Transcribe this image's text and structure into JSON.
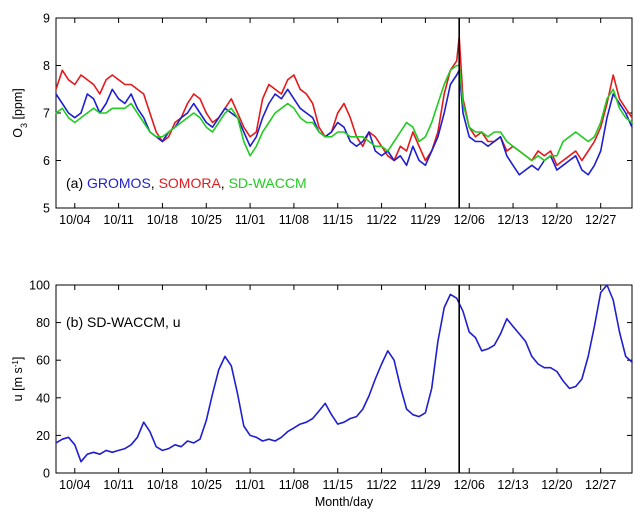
{
  "chart_data": [
    {
      "type": "line",
      "panel_label": "(a)",
      "xlabel": "",
      "ylabel_main": "O",
      "ylabel_sub": "3",
      "ylabel_unit": " [ppm]",
      "ylim": [
        5,
        9
      ],
      "yticks": [
        "5",
        "6",
        "7",
        "8",
        "9"
      ],
      "xlim": [
        1,
        93
      ],
      "xticks": [
        {
          "day": 4,
          "label": "10/04"
        },
        {
          "day": 11,
          "label": "10/11"
        },
        {
          "day": 18,
          "label": "10/18"
        },
        {
          "day": 25,
          "label": "10/25"
        },
        {
          "day": 32,
          "label": "11/01"
        },
        {
          "day": 39,
          "label": "11/08"
        },
        {
          "day": 46,
          "label": "11/15"
        },
        {
          "day": 53,
          "label": "11/22"
        },
        {
          "day": 60,
          "label": "11/29"
        },
        {
          "day": 67,
          "label": "12/06"
        },
        {
          "day": 74,
          "label": "12/13"
        },
        {
          "day": 81,
          "label": "12/20"
        },
        {
          "day": 88,
          "label": "12/27"
        }
      ],
      "event_day": 65.4,
      "annotation": [
        {
          "text": "(a) ",
          "color": "#000000"
        },
        {
          "text": "GROMOS",
          "color": "#1f1fd0"
        },
        {
          "text": ", ",
          "color": "#000000"
        },
        {
          "text": "SOMORA",
          "color": "#e31a1c"
        },
        {
          "text": ", ",
          "color": "#000000"
        },
        {
          "text": "SD-WACCM",
          "color": "#22cc22"
        }
      ],
      "series": [
        {
          "name": "SOMORA",
          "color": "#e31a1c",
          "x": [
            1,
            2,
            3,
            4,
            5,
            6,
            7,
            8,
            9,
            10,
            11,
            12,
            13,
            14,
            15,
            16,
            17,
            18,
            19,
            20,
            21,
            22,
            23,
            24,
            25,
            26,
            27,
            28,
            29,
            30,
            31,
            32,
            33,
            34,
            35,
            36,
            37,
            38,
            39,
            40,
            41,
            42,
            43,
            44,
            45,
            46,
            47,
            48,
            49,
            50,
            51,
            52,
            53,
            54,
            55,
            56,
            57,
            58,
            59,
            60,
            61,
            62,
            63,
            64,
            65,
            65.4,
            66,
            67,
            68,
            69,
            70,
            71,
            72,
            73,
            74,
            75,
            76,
            77,
            78,
            79,
            80,
            81,
            82,
            83,
            84,
            85,
            86,
            87,
            88,
            89,
            90,
            91,
            92,
            93
          ],
          "y": [
            7.5,
            7.9,
            7.7,
            7.6,
            7.8,
            7.7,
            7.6,
            7.4,
            7.7,
            7.8,
            7.7,
            7.6,
            7.6,
            7.5,
            7.4,
            7.0,
            6.6,
            6.4,
            6.5,
            6.8,
            6.9,
            7.2,
            7.4,
            7.3,
            7.0,
            6.8,
            6.9,
            7.1,
            7.3,
            7.0,
            6.7,
            6.5,
            6.6,
            7.3,
            7.6,
            7.5,
            7.4,
            7.7,
            7.8,
            7.5,
            7.4,
            7.2,
            6.7,
            6.5,
            6.6,
            7.0,
            7.2,
            6.9,
            6.5,
            6.3,
            6.6,
            6.5,
            6.3,
            6.1,
            6.0,
            6.3,
            6.2,
            6.6,
            6.3,
            6.0,
            6.2,
            6.6,
            7.4,
            7.9,
            8.1,
            8.6,
            7.3,
            6.7,
            6.5,
            6.6,
            6.4,
            6.4,
            6.5,
            6.2,
            6.3,
            6.2,
            6.1,
            6.0,
            6.2,
            6.1,
            6.2,
            5.9,
            6.0,
            6.1,
            6.2,
            6.0,
            6.2,
            6.4,
            6.7,
            7.2,
            7.8,
            7.3,
            7.1,
            6.9
          ]
        },
        {
          "name": "GROMOS",
          "color": "#1f1fd0",
          "x": [
            1,
            2,
            3,
            4,
            5,
            6,
            7,
            8,
            9,
            10,
            11,
            12,
            13,
            14,
            15,
            16,
            17,
            18,
            19,
            20,
            21,
            22,
            23,
            24,
            25,
            26,
            27,
            28,
            29,
            30,
            31,
            32,
            33,
            34,
            35,
            36,
            37,
            38,
            39,
            40,
            41,
            42,
            43,
            44,
            45,
            46,
            47,
            48,
            49,
            50,
            51,
            52,
            53,
            54,
            55,
            56,
            57,
            58,
            59,
            60,
            61,
            62,
            63,
            64,
            65,
            65.4,
            66,
            67,
            68,
            69,
            70,
            71,
            72,
            73,
            74,
            75,
            76,
            77,
            78,
            79,
            80,
            81,
            82,
            83,
            84,
            85,
            86,
            87,
            88,
            89,
            90,
            91,
            92,
            93
          ],
          "y": [
            7.4,
            7.2,
            7.0,
            6.9,
            7.0,
            7.4,
            7.3,
            7.0,
            7.2,
            7.5,
            7.3,
            7.2,
            7.4,
            7.1,
            6.9,
            6.6,
            6.5,
            6.4,
            6.6,
            6.7,
            6.9,
            7.0,
            7.2,
            7.0,
            6.8,
            6.7,
            6.9,
            7.1,
            7.0,
            6.9,
            6.6,
            6.3,
            6.5,
            6.9,
            7.2,
            7.4,
            7.3,
            7.5,
            7.3,
            7.1,
            7.0,
            6.9,
            6.6,
            6.5,
            6.6,
            6.8,
            6.7,
            6.4,
            6.3,
            6.4,
            6.6,
            6.2,
            6.1,
            6.2,
            6.0,
            6.1,
            5.9,
            6.3,
            6.0,
            5.9,
            6.2,
            6.5,
            7.0,
            7.6,
            7.8,
            7.9,
            7.0,
            6.5,
            6.4,
            6.4,
            6.3,
            6.4,
            6.5,
            6.1,
            5.9,
            5.7,
            5.8,
            5.9,
            5.8,
            6.0,
            6.1,
            5.8,
            5.9,
            6.0,
            6.1,
            5.8,
            5.7,
            5.9,
            6.2,
            6.9,
            7.4,
            7.2,
            7.0,
            6.7
          ]
        },
        {
          "name": "SD-WACCM",
          "color": "#22cc22",
          "x": [
            1,
            2,
            3,
            4,
            5,
            6,
            7,
            8,
            9,
            10,
            11,
            12,
            13,
            14,
            15,
            16,
            17,
            18,
            19,
            20,
            21,
            22,
            23,
            24,
            25,
            26,
            27,
            28,
            29,
            30,
            31,
            32,
            33,
            34,
            35,
            36,
            37,
            38,
            39,
            40,
            41,
            42,
            43,
            44,
            45,
            46,
            47,
            48,
            49,
            50,
            51,
            52,
            53,
            54,
            55,
            56,
            57,
            58,
            59,
            60,
            61,
            62,
            63,
            64,
            65,
            65.4,
            66,
            67,
            68,
            69,
            70,
            71,
            72,
            73,
            74,
            75,
            76,
            77,
            78,
            79,
            80,
            81,
            82,
            83,
            84,
            85,
            86,
            87,
            88,
            89,
            90,
            91,
            92,
            93
          ],
          "y": [
            7.0,
            7.1,
            6.9,
            6.8,
            6.9,
            7.0,
            7.1,
            7.0,
            7.0,
            7.1,
            7.1,
            7.1,
            7.2,
            7.0,
            6.8,
            6.6,
            6.5,
            6.5,
            6.6,
            6.7,
            6.8,
            6.9,
            7.0,
            6.9,
            6.7,
            6.6,
            6.8,
            7.0,
            7.1,
            6.9,
            6.4,
            6.1,
            6.3,
            6.6,
            6.8,
            7.0,
            7.1,
            7.2,
            7.1,
            6.9,
            6.8,
            6.8,
            6.6,
            6.5,
            6.5,
            6.6,
            6.6,
            6.5,
            6.5,
            6.5,
            6.4,
            6.3,
            6.3,
            6.2,
            6.4,
            6.6,
            6.8,
            6.7,
            6.4,
            6.5,
            6.8,
            7.2,
            7.6,
            7.9,
            8.0,
            8.0,
            7.2,
            6.7,
            6.6,
            6.6,
            6.5,
            6.6,
            6.6,
            6.4,
            6.3,
            6.2,
            6.1,
            6.0,
            6.1,
            6.0,
            6.1,
            6.1,
            6.4,
            6.5,
            6.6,
            6.5,
            6.4,
            6.5,
            6.8,
            7.3,
            7.5,
            7.1,
            6.9,
            6.8
          ]
        }
      ]
    },
    {
      "type": "line",
      "panel_label": "(b) SD-WACCM, u",
      "xlabel": "Month/day",
      "ylabel_main": "u [m s",
      "ylabel_sup": "-1",
      "ylabel_tail": "]",
      "ylim": [
        0,
        100
      ],
      "yticks": [
        "0",
        "20",
        "40",
        "60",
        "80",
        "100"
      ],
      "xlim": [
        1,
        93
      ],
      "xticks": [
        {
          "day": 4,
          "label": "10/04"
        },
        {
          "day": 11,
          "label": "10/11"
        },
        {
          "day": 18,
          "label": "10/18"
        },
        {
          "day": 25,
          "label": "10/25"
        },
        {
          "day": 32,
          "label": "11/01"
        },
        {
          "day": 39,
          "label": "11/08"
        },
        {
          "day": 46,
          "label": "11/15"
        },
        {
          "day": 53,
          "label": "11/22"
        },
        {
          "day": 60,
          "label": "11/29"
        },
        {
          "day": 67,
          "label": "12/06"
        },
        {
          "day": 74,
          "label": "12/13"
        },
        {
          "day": 81,
          "label": "12/20"
        },
        {
          "day": 88,
          "label": "12/27"
        }
      ],
      "event_day": 65.4,
      "series": [
        {
          "name": "SD-WACCM, u",
          "color": "#1f1fd0",
          "x": [
            1,
            2,
            3,
            4,
            5,
            6,
            7,
            8,
            9,
            10,
            11,
            12,
            13,
            14,
            15,
            16,
            17,
            18,
            19,
            20,
            21,
            22,
            23,
            24,
            25,
            26,
            27,
            28,
            29,
            30,
            31,
            32,
            33,
            34,
            35,
            36,
            37,
            38,
            39,
            40,
            41,
            42,
            43,
            44,
            45,
            46,
            47,
            48,
            49,
            50,
            51,
            52,
            53,
            54,
            55,
            56,
            57,
            58,
            59,
            60,
            61,
            62,
            63,
            64,
            65,
            66,
            67,
            68,
            69,
            70,
            71,
            72,
            73,
            74,
            75,
            76,
            77,
            78,
            79,
            80,
            81,
            82,
            83,
            84,
            85,
            86,
            87,
            88,
            89,
            90,
            91,
            92,
            93
          ],
          "y": [
            16,
            18,
            19,
            15,
            6,
            10,
            11,
            10,
            12,
            11,
            12,
            13,
            15,
            19,
            27,
            22,
            14,
            12,
            13,
            15,
            14,
            17,
            16,
            18,
            28,
            42,
            55,
            62,
            57,
            42,
            25,
            20,
            19,
            17,
            18,
            17,
            19,
            22,
            24,
            26,
            27,
            29,
            33,
            37,
            31,
            26,
            27,
            29,
            30,
            34,
            41,
            50,
            58,
            65,
            60,
            46,
            34,
            31,
            30,
            32,
            45,
            70,
            88,
            95,
            93,
            86,
            75,
            72,
            65,
            66,
            68,
            74,
            82,
            78,
            74,
            70,
            62,
            58,
            56,
            56,
            54,
            49,
            45,
            46,
            50,
            62,
            78,
            96,
            100,
            92,
            75,
            62,
            59
          ]
        }
      ]
    }
  ]
}
